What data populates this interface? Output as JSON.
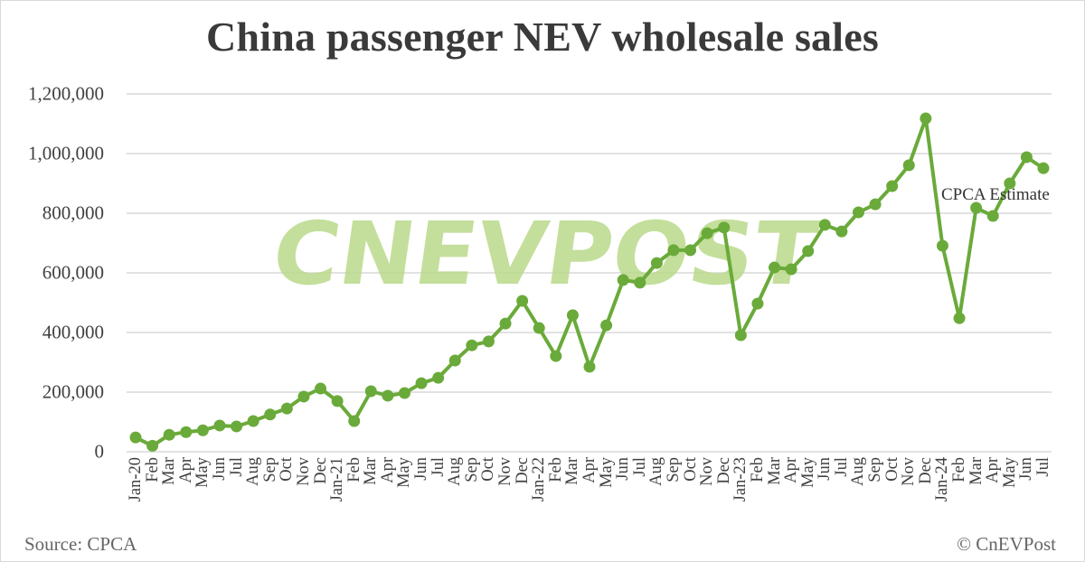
{
  "chart_data": {
    "type": "line",
    "title": "China passenger NEV wholesale sales",
    "xlabel": "",
    "ylabel": "",
    "ylim": [
      0,
      1200000
    ],
    "yticks": [
      "0",
      "200,000",
      "400,000",
      "600,000",
      "800,000",
      "1,000,000",
      "1,200,000"
    ],
    "grid": true,
    "legend": "none",
    "categories": [
      "Jan-20",
      "Feb",
      "Mar",
      "Apr",
      "May",
      "Jun",
      "Jul",
      "Aug",
      "Sep",
      "Oct",
      "Nov",
      "Dec",
      "Jan-21",
      "Feb",
      "Mar",
      "Apr",
      "May",
      "Jun",
      "Jul",
      "Aug",
      "Sep",
      "Oct",
      "Nov",
      "Dec",
      "Jan-22",
      "Feb",
      "Mar",
      "Apr",
      "May",
      "Jun",
      "Jul",
      "Aug",
      "Sep",
      "Oct",
      "Nov",
      "Dec",
      "Jan-23",
      "Feb",
      "Mar",
      "Apr",
      "May",
      "Jun",
      "Jul",
      "Aug",
      "Sep",
      "Oct",
      "Nov",
      "Dec",
      "Jan-24",
      "Feb",
      "Mar",
      "Apr",
      "May",
      "Jun",
      "Jul"
    ],
    "series": [
      {
        "name": "NEV wholesale sales",
        "color": "#6aaa3a",
        "values": [
          48000,
          20000,
          57000,
          66000,
          72000,
          88000,
          85000,
          103000,
          125000,
          145000,
          185000,
          212000,
          170000,
          103000,
          203000,
          188000,
          197000,
          230000,
          248000,
          306000,
          357000,
          370000,
          430000,
          506000,
          415000,
          321000,
          458000,
          285000,
          424000,
          576000,
          567000,
          633000,
          676000,
          676000,
          733000,
          752000,
          391000,
          497000,
          618000,
          612000,
          673000,
          761000,
          739000,
          803000,
          830000,
          891000,
          961000,
          1118000,
          691000,
          448000,
          818000,
          791000,
          900000,
          988000,
          951000
        ]
      }
    ],
    "annotations": [
      {
        "text": "CPCA Estimate",
        "near": "Jul (2024)"
      }
    ]
  },
  "footer": {
    "source": "Source: CPCA",
    "copyright": "© CnEVPost"
  },
  "watermark": {
    "text": "CNEVPOST",
    "color": "#b8d98a"
  },
  "colors": {
    "line": "#6aaa3a",
    "grid": "#d9d9d9",
    "text": "#404040"
  }
}
